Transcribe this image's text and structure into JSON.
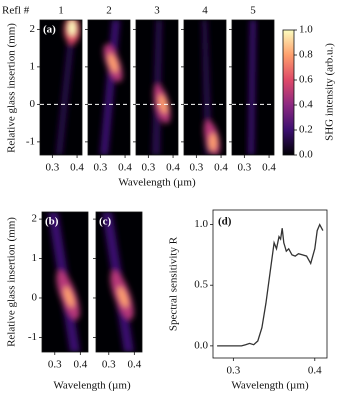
{
  "chart_data": [
    {
      "type": "heatmap",
      "panel_label": "(a)",
      "column_header": "Refl #",
      "panels": [
        "1",
        "2",
        "3",
        "4",
        "5"
      ],
      "ylabel": "Relative glass insertion (mm)",
      "xlabel": "Wavelength (µm)",
      "xlim": [
        0.25,
        0.42
      ],
      "ylim": [
        -1.35,
        2.25
      ],
      "xticks": [
        0.3,
        0.4
      ],
      "yticks": [
        -1,
        0,
        1,
        2
      ],
      "hline": 0,
      "colorbar": {
        "label": "SHG intensity (arb.u.)",
        "lim": [
          0,
          1
        ],
        "ticks": [
          {
            "value": 0,
            "label": "0.0"
          },
          0.2,
          0.4,
          0.6,
          0.8,
          {
            "value": 1,
            "label": "1.0"
          }
        ]
      }
    },
    {
      "type": "heatmap",
      "panels": [
        "(b)",
        "(c)"
      ],
      "ylabel": "Relative glass insertion (mm)",
      "xlabel": "Wavelength (µm)",
      "xlim": [
        0.25,
        0.43
      ],
      "ylim": [
        -1.37,
        2.18
      ],
      "xticks": [
        0.3,
        0.4
      ],
      "yticks": [
        -1,
        0,
        1,
        2
      ]
    },
    {
      "type": "line",
      "panel_label": "(d)",
      "ylabel": "Spectral sensitivity R",
      "xlabel": "Wavelength (µm)",
      "color": "#333333",
      "x": [
        0.28,
        0.29,
        0.3,
        0.31,
        0.315,
        0.32,
        0.325,
        0.33,
        0.335,
        0.34,
        0.345,
        0.35,
        0.353,
        0.356,
        0.358,
        0.36,
        0.362,
        0.365,
        0.368,
        0.372,
        0.376,
        0.38,
        0.385,
        0.39,
        0.395,
        0.4,
        0.403,
        0.406,
        0.41
      ],
      "values": [
        0,
        0,
        0,
        0,
        0.01,
        0.02,
        0.01,
        0.04,
        0.15,
        0.35,
        0.6,
        0.85,
        0.8,
        0.9,
        0.88,
        0.97,
        0.85,
        0.78,
        0.8,
        0.75,
        0.74,
        0.76,
        0.75,
        0.74,
        0.68,
        0.8,
        0.95,
        1.0,
        0.95
      ],
      "xlim": [
        0.275,
        0.415
      ],
      "ylim": [
        -0.1,
        1.12
      ],
      "xticks": [
        0.3,
        0.4
      ],
      "yticks": [
        {
          "value": 0,
          "label": "0.0"
        },
        0.5,
        {
          "value": 1,
          "label": "1.0"
        }
      ]
    }
  ]
}
